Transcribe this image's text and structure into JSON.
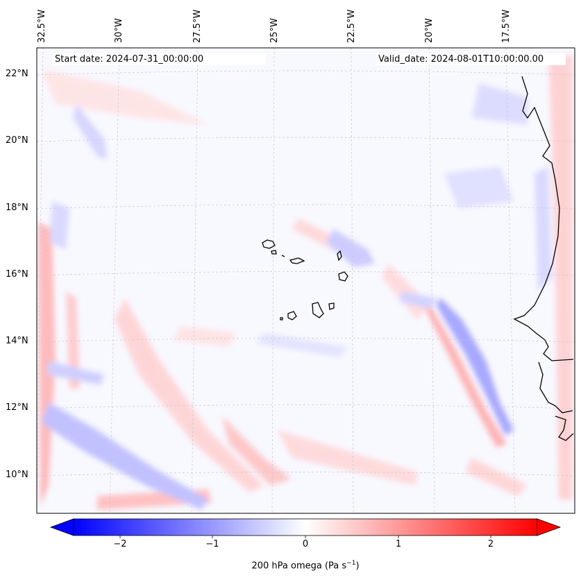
{
  "banner": {
    "start": "Start date: 2024-07-31_00:00:00",
    "valid": "Valid_date: 2024-08-01T10:00:00.00"
  },
  "longitude_ticks": [
    "32.5°W",
    "30°W",
    "27.5°W",
    "25°W",
    "22.5°W",
    "20°W",
    "17.5°W"
  ],
  "latitude_ticks": [
    "22°N",
    "20°N",
    "18°N",
    "16°N",
    "14°N",
    "12°N",
    "10°N"
  ],
  "colorbar": {
    "ticks": [
      "−2",
      "−1",
      "0",
      "1",
      "2"
    ],
    "range": [
      -2.5,
      2.5
    ],
    "label": "200 hPa omega (Pa s",
    "label_sup": "−1",
    "label_end": ")",
    "colors": {
      "min": "#0000ff",
      "mid": "#ffffff",
      "max": "#ff0000"
    }
  },
  "map": {
    "background_color": "#f8f8ff",
    "coastline_color": "#000000",
    "gridline_color": "#c8c8c8"
  }
}
